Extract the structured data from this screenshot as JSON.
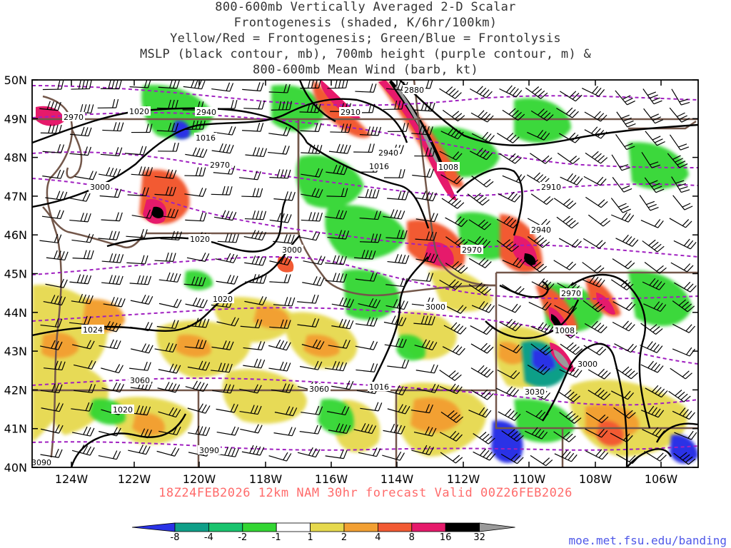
{
  "title_lines": [
    "800-600mb Vertically Averaged 2-D Scalar",
    "Frontogenesis (shaded, K/6hr/100km)",
    "Yellow/Red = Frontogenesis;  Green/Blue = Frontolysis",
    "MSLP (black contour, mb), 700mb height (purple contour, m) &",
    "800-600mb Mean Wind (barb, kt)"
  ],
  "lat_labels": [
    "50N",
    "49N",
    "48N",
    "47N",
    "46N",
    "45N",
    "44N",
    "43N",
    "42N",
    "41N",
    "40N"
  ],
  "lon_labels": [
    "124W",
    "122W",
    "120W",
    "118W",
    "116W",
    "114W",
    "112W",
    "110W",
    "108W",
    "106W"
  ],
  "valid_line": "18Z24FEB2026 12km NAM 30hr forecast Valid 00Z26FEB2026",
  "colorbar": {
    "labels": [
      "-8",
      "-4",
      "-2",
      "-1",
      "1",
      "2",
      "4",
      "8",
      "16",
      "32"
    ],
    "colors": [
      "#2a33e6",
      "#0f9f88",
      "#19c46e",
      "#33d633",
      "#ffffff",
      "#e6d94d",
      "#f2a033",
      "#f25a33",
      "#e61a6b",
      "#000000",
      "#9a9a9a"
    ]
  },
  "mslp_labels": [
    {
      "text": "1020"
    },
    {
      "text": "1016"
    },
    {
      "text": "1016"
    },
    {
      "text": "1008"
    },
    {
      "text": "1020"
    },
    {
      "text": "1020"
    },
    {
      "text": "1024"
    },
    {
      "text": "1020"
    },
    {
      "text": "1016"
    },
    {
      "text": "1008"
    }
  ],
  "height_labels": [
    {
      "text": "2880"
    },
    {
      "text": "2940"
    },
    {
      "text": "2910"
    },
    {
      "text": "2970"
    },
    {
      "text": "2940"
    },
    {
      "text": "2970"
    },
    {
      "text": "3000"
    },
    {
      "text": "2910"
    },
    {
      "text": "2940"
    },
    {
      "text": "2970"
    },
    {
      "text": "3000"
    },
    {
      "text": "2970"
    },
    {
      "text": "3000"
    },
    {
      "text": "3000"
    },
    {
      "text": "3060"
    },
    {
      "text": "3060"
    },
    {
      "text": "3030"
    },
    {
      "text": "3090"
    },
    {
      "text": "3090"
    }
  ],
  "credit": "moe.met.fsu.edu/banding"
}
